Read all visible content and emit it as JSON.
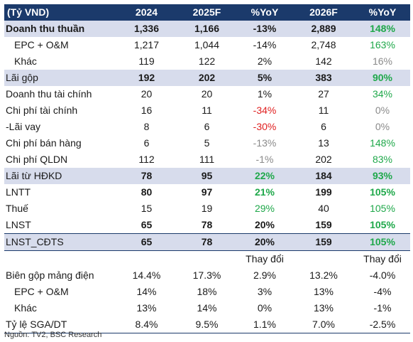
{
  "header": [
    "(Tỷ VND)",
    "2024",
    "2025F",
    "%YoY",
    "2026F",
    "%YoY"
  ],
  "rows": [
    {
      "label": "Doanh thu thuần",
      "v": [
        "1,336",
        "1,166",
        "-13%",
        "2,889",
        "148%"
      ]
    },
    {
      "label": "EPC + O&M",
      "v": [
        "1,217",
        "1,044",
        "-14%",
        "2,748",
        "163%"
      ]
    },
    {
      "label": "Khác",
      "v": [
        "119",
        "122",
        "2%",
        "142",
        "16%"
      ]
    },
    {
      "label": "Lãi gộp",
      "v": [
        "192",
        "202",
        "5%",
        "383",
        "90%"
      ]
    },
    {
      "label": "Doanh thu tài chính",
      "v": [
        "20",
        "20",
        "1%",
        "27",
        "34%"
      ]
    },
    {
      "label": "Chi phí tài chính",
      "v": [
        "16",
        "11",
        "-34%",
        "11",
        "0%"
      ]
    },
    {
      "label": "-Lãi vay",
      "v": [
        "8",
        "6",
        "-30%",
        "6",
        "0%"
      ]
    },
    {
      "label": "Chi phí bán hàng",
      "v": [
        "6",
        "5",
        "-13%",
        "13",
        "148%"
      ]
    },
    {
      "label": "Chi phí QLDN",
      "v": [
        "112",
        "111",
        "-1%",
        "202",
        "83%"
      ]
    },
    {
      "label": "Lãi từ HĐKD",
      "v": [
        "78",
        "95",
        "22%",
        "184",
        "93%"
      ]
    },
    {
      "label": "LNTT",
      "v": [
        "80",
        "97",
        "21%",
        "199",
        "105%"
      ]
    },
    {
      "label": "Thuế",
      "v": [
        "15",
        "19",
        "29%",
        "40",
        "105%"
      ]
    },
    {
      "label": "LNST",
      "v": [
        "65",
        "78",
        "20%",
        "159",
        "105%"
      ]
    },
    {
      "label": "LNST_CĐTS",
      "v": [
        "65",
        "78",
        "20%",
        "159",
        "105%"
      ]
    }
  ],
  "sub_header": [
    "",
    "",
    "",
    "Thay đổi",
    "",
    "Thay đổi"
  ],
  "ratios": [
    {
      "label": "Biên gộp mảng điện",
      "v": [
        "14.4%",
        "17.3%",
        "2.9%",
        "13.2%",
        "-4.0%"
      ]
    },
    {
      "label": "EPC + O&M",
      "v": [
        "14%",
        "18%",
        "3%",
        "13%",
        "-4%"
      ]
    },
    {
      "label": "Khác",
      "v": [
        "13%",
        "14%",
        "0%",
        "13%",
        "-1%"
      ]
    },
    {
      "label": "Tỷ lệ SGA/DT",
      "v": [
        "8.4%",
        "9.5%",
        "1.1%",
        "7.0%",
        "-2.5%"
      ]
    }
  ],
  "source_note": "Nguồn: TV2, BSC Research",
  "colors": {
    "header_bg": "#1b3a6b",
    "highlight_bg": "#d7dcec",
    "negative": "#e02020",
    "positive": "#1fa84a",
    "muted": "#8a8a8a"
  }
}
